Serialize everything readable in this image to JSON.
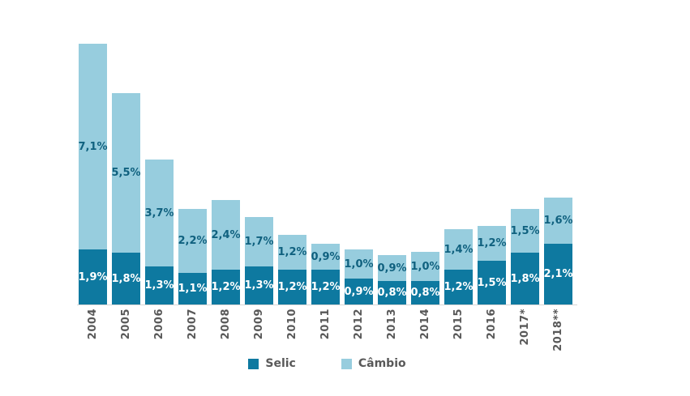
{
  "chart_data": {
    "type": "bar",
    "stacked": true,
    "title": "",
    "xlabel": "",
    "ylabel": "",
    "unit": "%",
    "grid": false,
    "legend_position": "bottom",
    "ylim": [
      0,
      9.5
    ],
    "categories": [
      "2004",
      "2005",
      "2006",
      "2007",
      "2008",
      "2009",
      "2010",
      "2011",
      "2012",
      "2013",
      "2014",
      "2015",
      "2016",
      "2017*",
      "2018**"
    ],
    "series": [
      {
        "name": "Selic",
        "color": "#0e79a0",
        "label_color": "#ffffff",
        "values": [
          1.9,
          1.8,
          1.3,
          1.1,
          1.2,
          1.3,
          1.2,
          1.2,
          0.9,
          0.8,
          0.8,
          1.2,
          1.5,
          1.8,
          2.1
        ],
        "labels": [
          "1,9%",
          "1,8%",
          "1,3%",
          "1,1%",
          "1,2%",
          "1,3%",
          "1,2%",
          "1,2%",
          "0,9%",
          "0,8%",
          "0,8%",
          "1,2%",
          "1,5%",
          "1,8%",
          "2,1%"
        ]
      },
      {
        "name": "Câmbio",
        "color": "#97cdde",
        "label_color": "#10617f",
        "values": [
          7.1,
          5.5,
          3.7,
          2.2,
          2.4,
          1.7,
          1.2,
          0.9,
          1.0,
          0.9,
          1.0,
          1.4,
          1.2,
          1.5,
          1.6
        ],
        "labels": [
          "7,1%",
          "5,5%",
          "3,7%",
          "2,2%",
          "2,4%",
          "1,7%",
          "1,2%",
          "0,9%",
          "1,0%",
          "0,9%",
          "1,0%",
          "1,4%",
          "1,2%",
          "1,5%",
          "1,6%"
        ]
      }
    ],
    "axis_line_color": "#d6d6d6",
    "axis_label_color": "#595959"
  }
}
